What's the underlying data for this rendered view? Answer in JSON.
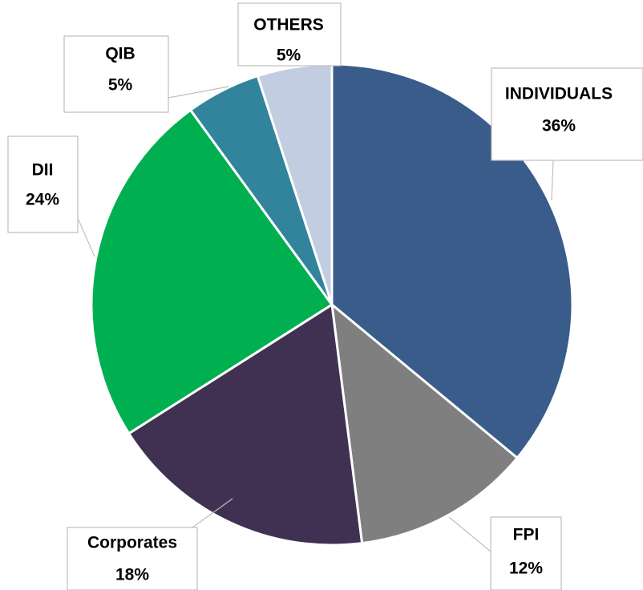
{
  "chart_data": {
    "type": "pie",
    "categories": [
      "INDIVIDUALS",
      "FPI",
      "Corporates",
      "DII",
      "QIB",
      "OTHERS"
    ],
    "values": [
      36,
      12,
      18,
      24,
      5,
      5
    ],
    "value_labels": [
      "36%",
      "12%",
      "18%",
      "24%",
      "5%",
      "5%"
    ],
    "colors": [
      "#3a5c8a",
      "#7f7f7f",
      "#403152",
      "#00b050",
      "#31849b",
      "#c2cde2"
    ]
  }
}
